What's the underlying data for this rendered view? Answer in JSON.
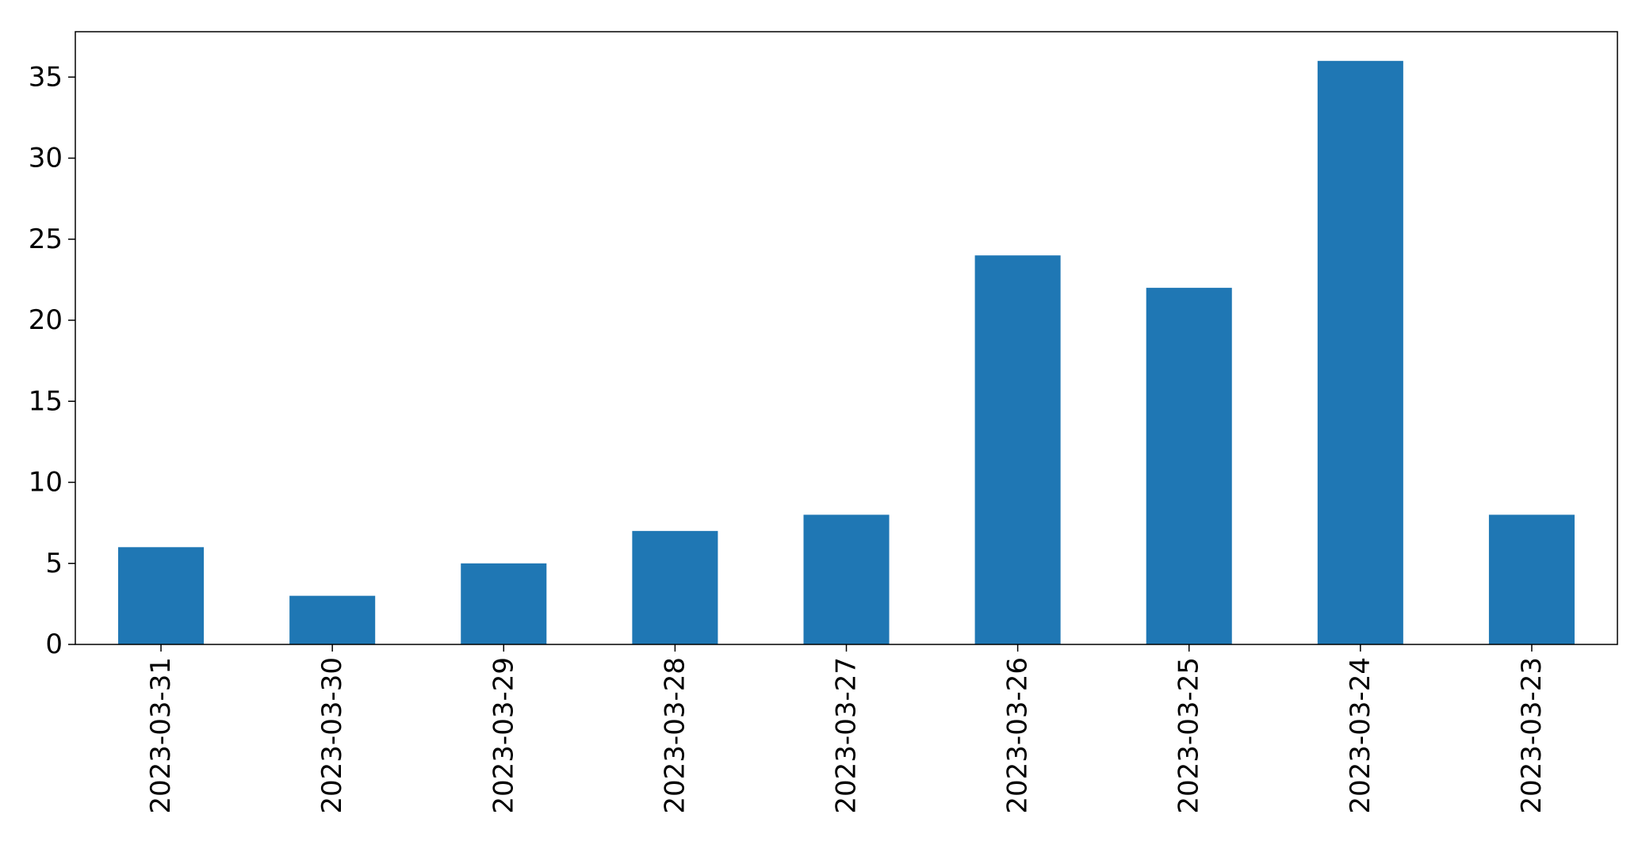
{
  "chart_data": {
    "type": "bar",
    "categories": [
      "2023-03-31",
      "2023-03-30",
      "2023-03-29",
      "2023-03-28",
      "2023-03-27",
      "2023-03-26",
      "2023-03-25",
      "2023-03-24",
      "2023-03-23"
    ],
    "values": [
      6,
      3,
      5,
      7,
      8,
      24,
      22,
      36,
      8
    ],
    "title": "",
    "xlabel": "",
    "ylabel": "",
    "ylim": [
      0,
      37.8
    ],
    "yticks": [
      0,
      5,
      10,
      15,
      20,
      25,
      30,
      35
    ],
    "x_tick_rotation": "vertical",
    "grid": false,
    "legend": "none",
    "bar_color": "#1f77b4"
  }
}
